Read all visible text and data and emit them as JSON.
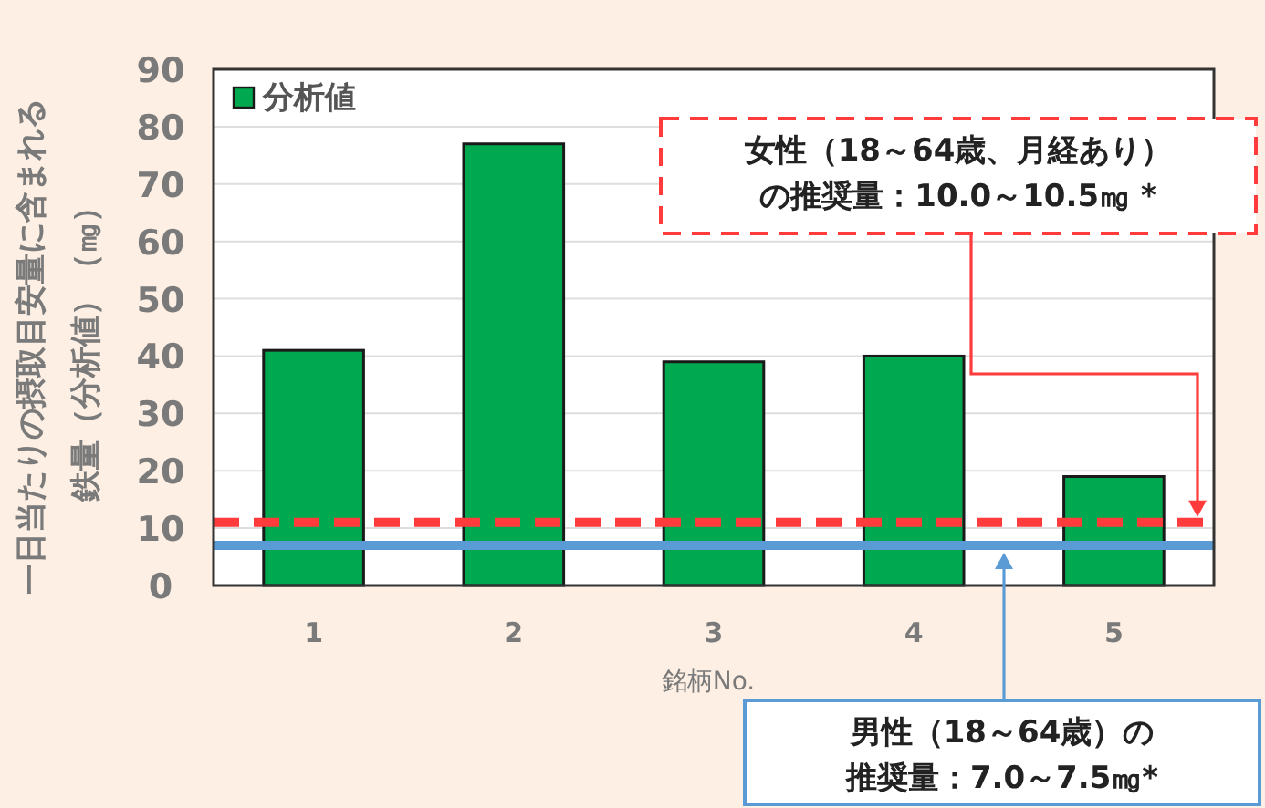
{
  "chart_data": {
    "type": "bar",
    "categories": [
      "1",
      "2",
      "3",
      "4",
      "5"
    ],
    "series": [
      {
        "name": "分析値",
        "color": "#00a94f",
        "values": [
          41,
          77,
          39,
          40,
          19
        ]
      }
    ],
    "xlabel": "銘柄No.",
    "ylabel": "一日当たりの摂取目安量に含まれる鉄量（分析値）（㎎）",
    "ylim": [
      0,
      90
    ],
    "yticks": [
      0,
      10,
      20,
      30,
      40,
      50,
      60,
      70,
      80,
      90
    ],
    "grid": "y",
    "legend": "top left",
    "ref_lines": [
      {
        "axis": "y",
        "value": 11,
        "label": "女性（18～64歳、月経あり）の推奨量：10.0～10.5㎎ *",
        "color": "#ff3b3b",
        "line_style": "dashed"
      },
      {
        "axis": "y",
        "value": 7,
        "label": "男性（18～64歳）の推奨量：7.0～7.5㎎*",
        "color": "#5b9bd5",
        "line_style": "solid"
      }
    ]
  }
}
